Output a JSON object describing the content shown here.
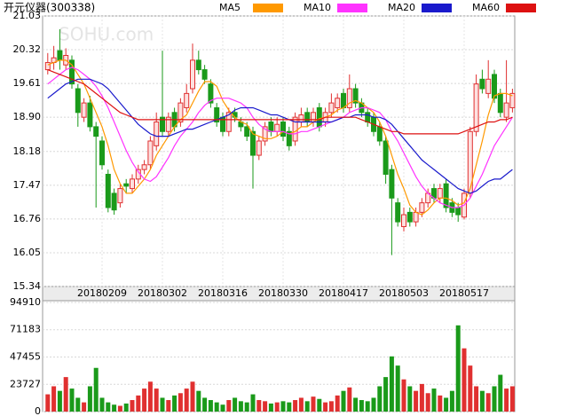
{
  "chart_data": [
    {
      "type": "candlestick",
      "title": "开元仪器(300338)",
      "watermark": "SOHU.com",
      "up_color": "#e03030",
      "up_fill": "#fde0e0",
      "down_color": "#1a9a1a",
      "categories": [
        null,
        null,
        null,
        null,
        null,
        null,
        null,
        null,
        null,
        "20180209",
        null,
        null,
        null,
        null,
        null,
        null,
        null,
        null,
        null,
        "20180302",
        null,
        null,
        null,
        null,
        null,
        null,
        null,
        null,
        null,
        "20180316",
        null,
        null,
        null,
        null,
        null,
        null,
        null,
        null,
        null,
        "20180330",
        null,
        null,
        null,
        null,
        null,
        null,
        null,
        null,
        null,
        "20180417",
        null,
        null,
        null,
        null,
        null,
        null,
        null,
        null,
        null,
        "20180503",
        null,
        null,
        null,
        null,
        null,
        null,
        null,
        null,
        null,
        "20180517",
        null,
        null,
        null,
        null,
        null,
        null,
        null,
        null
      ],
      "open": [
        19.9,
        20.05,
        20.3,
        20.0,
        20.1,
        19.5,
        18.9,
        19.2,
        18.7,
        18.4,
        17.7,
        17.3,
        17.1,
        17.5,
        17.4,
        17.6,
        17.8,
        17.9,
        18.3,
        18.9,
        18.6,
        19.0,
        18.8,
        19.1,
        19.5,
        20.1,
        19.9,
        19.6,
        19.1,
        18.9,
        18.6,
        19.0,
        18.8,
        18.7,
        18.6,
        18.1,
        18.4,
        18.8,
        18.6,
        18.8,
        18.6,
        18.4,
        18.8,
        19.0,
        18.8,
        19.1,
        18.8,
        19.0,
        19.1,
        19.4,
        19.1,
        19.5,
        19.2,
        19.0,
        18.9,
        18.7,
        18.4,
        17.8,
        17.1,
        16.6,
        16.9,
        16.7,
        16.9,
        17.1,
        17.4,
        17.2,
        17.5,
        17.1,
        17.0,
        16.8,
        17.3,
        18.6,
        19.7,
        19.4,
        19.8,
        19.4,
        18.9,
        19.1
      ],
      "high": [
        20.25,
        20.4,
        20.75,
        20.35,
        20.2,
        19.6,
        19.3,
        19.35,
        18.8,
        18.5,
        17.8,
        17.4,
        17.5,
        17.6,
        17.7,
        17.9,
        18.0,
        18.5,
        19.0,
        20.3,
        19.0,
        19.1,
        19.3,
        19.6,
        20.45,
        20.3,
        20.0,
        19.7,
        19.2,
        19.0,
        19.1,
        19.1,
        18.9,
        18.8,
        18.7,
        18.5,
        18.8,
        18.9,
        18.9,
        18.9,
        18.7,
        19.0,
        19.1,
        19.1,
        19.1,
        19.2,
        19.1,
        19.4,
        19.4,
        19.5,
        19.8,
        19.6,
        19.3,
        19.1,
        19.0,
        18.8,
        18.5,
        17.9,
        17.2,
        17.0,
        17.0,
        17.0,
        17.2,
        17.4,
        17.5,
        17.5,
        17.6,
        17.2,
        17.1,
        17.4,
        18.7,
        19.8,
        19.9,
        20.1,
        19.9,
        19.5,
        20.1,
        19.5
      ],
      "low": [
        19.8,
        19.9,
        19.9,
        19.9,
        19.5,
        18.7,
        18.8,
        18.6,
        17.0,
        17.8,
        16.9,
        16.85,
        17.0,
        17.3,
        17.3,
        17.5,
        17.7,
        17.8,
        18.2,
        18.5,
        18.5,
        18.6,
        18.7,
        19.0,
        19.4,
        19.8,
        19.6,
        19.1,
        18.7,
        18.5,
        18.5,
        18.8,
        18.6,
        18.4,
        17.4,
        18.0,
        18.3,
        18.5,
        18.5,
        18.4,
        18.2,
        18.3,
        18.7,
        18.7,
        18.7,
        18.6,
        18.7,
        18.9,
        19.0,
        19.0,
        19.0,
        19.1,
        18.9,
        18.7,
        18.5,
        18.3,
        17.5,
        16.0,
        16.6,
        16.5,
        16.6,
        16.6,
        16.8,
        17.0,
        17.1,
        17.1,
        16.9,
        16.8,
        16.7,
        16.75,
        17.2,
        18.5,
        19.4,
        19.3,
        19.2,
        18.9,
        18.8,
        19.0
      ],
      "close": [
        20.05,
        20.15,
        20.1,
        20.2,
        19.6,
        19.0,
        19.2,
        18.7,
        18.5,
        17.9,
        17.0,
        16.95,
        17.4,
        17.45,
        17.6,
        17.8,
        17.9,
        18.4,
        18.8,
        18.6,
        18.9,
        18.7,
        19.2,
        19.4,
        20.1,
        19.9,
        19.7,
        19.2,
        18.8,
        18.6,
        19.0,
        18.9,
        18.7,
        18.5,
        18.1,
        18.4,
        18.7,
        18.6,
        18.75,
        18.5,
        18.3,
        18.9,
        18.95,
        18.8,
        19.0,
        18.7,
        19.0,
        19.2,
        19.3,
        19.1,
        19.5,
        19.2,
        19.0,
        18.8,
        18.6,
        18.4,
        17.7,
        17.2,
        16.7,
        16.85,
        16.7,
        16.9,
        17.1,
        17.3,
        17.2,
        17.4,
        17.0,
        16.9,
        16.85,
        17.3,
        18.6,
        19.6,
        19.5,
        19.7,
        19.3,
        19.0,
        19.2,
        19.4
      ],
      "series": [
        {
          "name": "MA5",
          "color": "#ff9900",
          "values": [
            20.0,
            20.05,
            20.1,
            20.1,
            20.0,
            19.8,
            19.6,
            19.3,
            19.0,
            18.7,
            18.3,
            17.8,
            17.5,
            17.3,
            17.3,
            17.45,
            17.6,
            17.8,
            18.1,
            18.3,
            18.5,
            18.7,
            18.85,
            18.95,
            19.2,
            19.45,
            19.65,
            19.65,
            19.55,
            19.25,
            19.05,
            18.9,
            18.8,
            18.75,
            18.55,
            18.5,
            18.45,
            18.45,
            18.5,
            18.6,
            18.55,
            18.6,
            18.7,
            18.7,
            18.8,
            18.87,
            18.9,
            18.95,
            19.05,
            19.1,
            19.2,
            19.25,
            19.2,
            19.1,
            19.0,
            18.8,
            18.5,
            18.1,
            17.7,
            17.4,
            17.05,
            16.9,
            16.85,
            16.95,
            17.1,
            17.2,
            17.2,
            17.15,
            17.05,
            17.1,
            17.4,
            17.9,
            18.4,
            18.95,
            19.35,
            19.4,
            19.4,
            19.35
          ]
        },
        {
          "name": "MA10",
          "color": "#ff33ff",
          "values": [
            19.6,
            19.7,
            19.8,
            19.9,
            19.95,
            19.9,
            19.8,
            19.7,
            19.55,
            19.35,
            19.1,
            18.8,
            18.5,
            18.2,
            17.95,
            17.75,
            17.6,
            17.55,
            17.65,
            17.85,
            18.05,
            18.3,
            18.5,
            18.65,
            18.8,
            19.0,
            19.15,
            19.25,
            19.3,
            19.3,
            19.3,
            19.25,
            19.2,
            19.1,
            18.9,
            18.75,
            18.65,
            18.6,
            18.6,
            18.6,
            18.55,
            18.55,
            18.6,
            18.6,
            18.65,
            18.7,
            18.75,
            18.8,
            18.85,
            18.9,
            19.0,
            19.05,
            19.1,
            19.1,
            19.05,
            19.0,
            18.85,
            18.6,
            18.4,
            18.15,
            17.9,
            17.65,
            17.45,
            17.3,
            17.2,
            17.1,
            17.05,
            17.0,
            17.0,
            17.05,
            17.2,
            17.45,
            17.7,
            18.0,
            18.3,
            18.5,
            18.7,
            18.9
          ]
        },
        {
          "name": "MA20",
          "color": "#1a1acc",
          "values": [
            19.3,
            19.4,
            19.5,
            19.6,
            19.65,
            19.7,
            19.7,
            19.7,
            19.65,
            19.6,
            19.5,
            19.35,
            19.2,
            19.05,
            18.9,
            18.75,
            18.65,
            18.55,
            18.5,
            18.5,
            18.5,
            18.55,
            18.6,
            18.65,
            18.65,
            18.7,
            18.75,
            18.8,
            18.85,
            18.9,
            18.95,
            19.05,
            19.1,
            19.1,
            19.1,
            19.05,
            19.0,
            18.95,
            18.95,
            18.9,
            18.85,
            18.8,
            18.8,
            18.8,
            18.8,
            18.8,
            18.8,
            18.8,
            18.85,
            18.9,
            18.9,
            18.95,
            18.95,
            18.95,
            18.9,
            18.9,
            18.85,
            18.75,
            18.6,
            18.45,
            18.3,
            18.15,
            18.0,
            17.9,
            17.8,
            17.7,
            17.6,
            17.5,
            17.4,
            17.35,
            17.3,
            17.35,
            17.45,
            17.55,
            17.6,
            17.6,
            17.7,
            17.8
          ]
        },
        {
          "name": "MA60",
          "color": "#dd1111",
          "values": [
            19.9,
            19.85,
            19.8,
            19.75,
            19.7,
            19.65,
            19.6,
            19.5,
            19.4,
            19.3,
            19.2,
            19.1,
            19.0,
            18.95,
            18.9,
            18.85,
            18.85,
            18.85,
            18.85,
            18.85,
            18.85,
            18.85,
            18.85,
            18.85,
            18.85,
            18.85,
            18.85,
            18.85,
            18.85,
            18.85,
            18.85,
            18.85,
            18.85,
            18.85,
            18.85,
            18.85,
            18.85,
            18.85,
            18.85,
            18.85,
            18.85,
            18.85,
            18.85,
            18.85,
            18.85,
            18.85,
            18.9,
            18.9,
            18.9,
            18.9,
            18.9,
            18.9,
            18.85,
            18.8,
            18.75,
            18.7,
            18.65,
            18.6,
            18.6,
            18.55,
            18.55,
            18.55,
            18.55,
            18.55,
            18.55,
            18.55,
            18.55,
            18.55,
            18.55,
            18.6,
            18.65,
            18.7,
            18.75,
            18.8,
            18.8,
            18.85,
            18.85,
            18.9
          ]
        }
      ],
      "ylim": [
        15.34,
        21.03
      ],
      "yticks": [
        15.34,
        16.05,
        16.76,
        17.47,
        18.18,
        {
          "value": 18.9,
          "label": "18.90"
        },
        19.61,
        20.32,
        21.03
      ],
      "grid": true
    },
    {
      "type": "bar",
      "values": [
        15000,
        22000,
        18000,
        30000,
        20000,
        12000,
        8000,
        22000,
        38000,
        12000,
        8000,
        6000,
        5000,
        7000,
        10000,
        14000,
        20000,
        26000,
        20000,
        12000,
        10000,
        14000,
        16000,
        20000,
        26000,
        18000,
        12000,
        10000,
        8000,
        6000,
        10000,
        12000,
        9000,
        8000,
        15000,
        10000,
        9000,
        7000,
        8000,
        9000,
        8000,
        10000,
        12000,
        9000,
        13000,
        11000,
        8000,
        9000,
        14000,
        18000,
        21000,
        12000,
        10000,
        9000,
        12000,
        22000,
        30000,
        48000,
        40000,
        28000,
        22000,
        18000,
        24000,
        16000,
        20000,
        14000,
        12000,
        18000,
        75000,
        55000,
        40000,
        22000,
        18000,
        16000,
        22000,
        32000,
        20000,
        22000
      ],
      "ylim": [
        0,
        94910
      ],
      "yticks": [
        0,
        23727,
        47455,
        71183,
        94910
      ],
      "grid": true
    }
  ]
}
